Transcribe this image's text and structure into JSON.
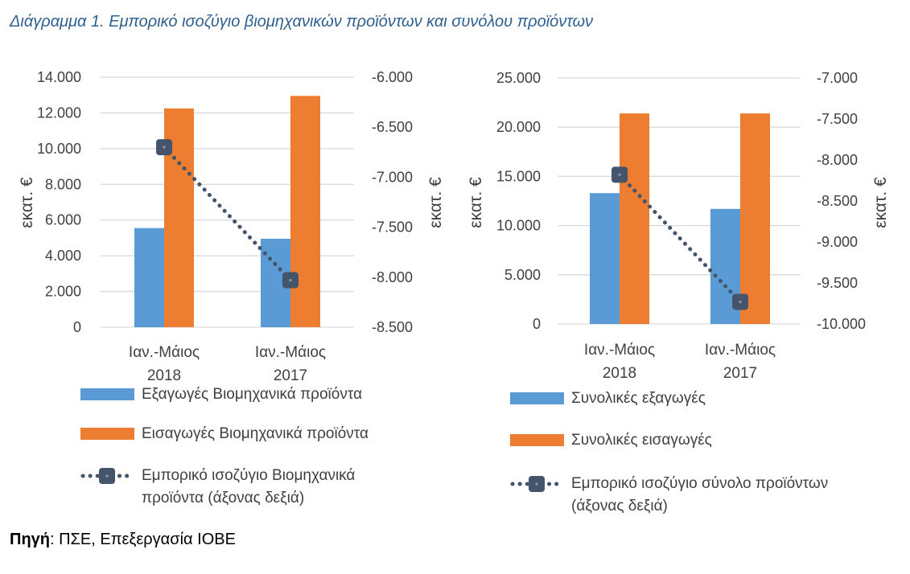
{
  "title": "Διάγραμμα 1. Εμπορικό ισοζύγιο βιομηχανικών προϊόντων και συνόλου προϊόντων",
  "source": {
    "label": "Πηγή",
    "text": ": ΠΣΕ, Επεξεργασία ΙΟΒΕ"
  },
  "colors": {
    "exports": "#5b9bd5",
    "imports": "#ed7d31",
    "balance": "#44546a",
    "grid": "#d9d9d9"
  },
  "chart_data": [
    {
      "type": "bar",
      "categories": [
        [
          "Ιαν.-Μάιος",
          "2018"
        ],
        [
          "Ιαν.-Μάιος",
          "2017"
        ]
      ],
      "ylabel": "εκατ. €",
      "y2label": "εκατ. €",
      "ylim": [
        0,
        14000
      ],
      "yticks": [
        0,
        2000,
        4000,
        6000,
        8000,
        10000,
        12000,
        14000
      ],
      "ytick_labels": [
        "0",
        "2.000",
        "4.000",
        "6.000",
        "8.000",
        "10.000",
        "12.000",
        "14.000"
      ],
      "y2lim": [
        -8500,
        -6000
      ],
      "y2ticks": [
        -8500,
        -8000,
        -7500,
        -7000,
        -6500,
        -6000
      ],
      "y2tick_labels": [
        "-8.500",
        "-8.000",
        "-7.500",
        "-7.000",
        "-6.500",
        "-6.000"
      ],
      "series": [
        {
          "name": "Εξαγωγές Βιομηχανικά προϊόντα",
          "kind": "bar",
          "values": [
            5550,
            4950
          ]
        },
        {
          "name": "Εισαγωγές Βιομηχανικά προϊόντα",
          "kind": "bar",
          "values": [
            12250,
            12950
          ]
        },
        {
          "name": "Εμπορικό ισοζύγιο Βιομηχανικά προϊόντα (άξονας δεξιά)",
          "kind": "line",
          "axis": "right",
          "values": [
            -6700,
            -8030
          ]
        }
      ],
      "grid": true,
      "legend": "bottom"
    },
    {
      "type": "bar",
      "categories": [
        [
          "Ιαν.-Μάιος",
          "2018"
        ],
        [
          "Ιαν.-Μάιος",
          "2017"
        ]
      ],
      "ylabel": "εκατ. €",
      "y2label": "εκατ. €",
      "ylim": [
        0,
        25000
      ],
      "yticks": [
        0,
        5000,
        10000,
        15000,
        20000,
        25000
      ],
      "ytick_labels": [
        "0",
        "5.000",
        "10.000",
        "15.000",
        "20.000",
        "25.000"
      ],
      "y2lim": [
        -10000,
        -7000
      ],
      "y2ticks": [
        -10000,
        -9500,
        -9000,
        -8500,
        -8000,
        -7500,
        -7000
      ],
      "y2tick_labels": [
        "-10.000",
        "-9.500",
        "-9.000",
        "-8.500",
        "-8.000",
        "-7.500",
        "-7.000"
      ],
      "series": [
        {
          "name": "Συνολικές εξαγωγές",
          "kind": "bar",
          "values": [
            13300,
            11700
          ]
        },
        {
          "name": "Συνολικές εισαγωγές",
          "kind": "bar",
          "values": [
            21400,
            21400
          ]
        },
        {
          "name": "Εμπορικό ισοζύγιο σύνολο προϊόντων (άξονας δεξιά)",
          "kind": "line",
          "axis": "right",
          "values": [
            -8180,
            -9730
          ]
        }
      ],
      "grid": true,
      "legend": "bottom"
    }
  ],
  "legends": [
    {
      "items": [
        {
          "label": "Εξαγωγές Βιομηχανικά προϊόντα"
        },
        {
          "label": "Εισαγωγές Βιομηχανικά προϊόντα"
        },
        {
          "label_line1": "Εμπορικό ισοζύγιο Βιομηχανικά",
          "label_line2": "προϊόντα (άξονας δεξιά)"
        }
      ]
    },
    {
      "items": [
        {
          "label": "Συνολικές εξαγωγές"
        },
        {
          "label": "Συνολικές εισαγωγές"
        },
        {
          "label_line1": "Εμπορικό ισοζύγιο σύνολο προϊόντων",
          "label_line2": "(άξονας δεξιά)"
        }
      ]
    }
  ]
}
